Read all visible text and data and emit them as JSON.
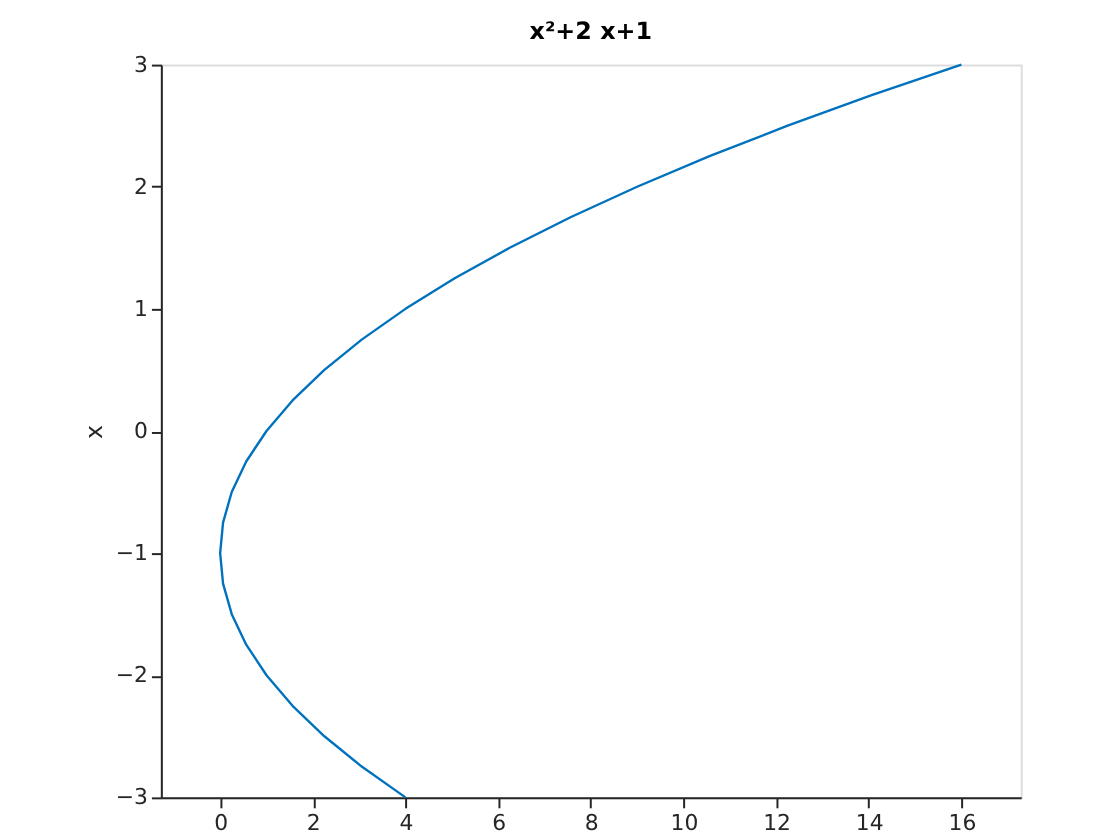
{
  "chart_data": {
    "type": "line",
    "title": "x²+2 x+1",
    "ylabel": "x",
    "series": [
      {
        "color": "#0072bd",
        "x": [
          4,
          3.0625,
          2.25,
          1.5625,
          1,
          0.5625,
          0.25,
          0.0625,
          0,
          0.0625,
          0.25,
          0.5625,
          1,
          1.5625,
          2.25,
          3.0625,
          4,
          5.0625,
          6.25,
          7.5625,
          9,
          10.5625,
          12.25,
          14.0625,
          16
        ],
        "values": [
          -3,
          -2.75,
          -2.5,
          -2.25,
          -2,
          -1.75,
          -1.5,
          -1.25,
          -1,
          -0.75,
          -0.5,
          -0.25,
          0,
          0.25,
          0.5,
          0.75,
          1,
          1.25,
          1.5,
          1.75,
          2,
          2.25,
          2.5,
          2.75,
          3
        ]
      }
    ],
    "xlim": [
      -1.28,
      17.28
    ],
    "xticks": [
      0,
      2,
      4,
      6,
      8,
      10,
      12,
      14,
      16
    ],
    "ylim": [
      -3,
      3
    ],
    "yticks": [
      -3,
      -2,
      -1,
      0,
      1,
      2,
      3
    ],
    "grid": false,
    "marker": "none",
    "line_style": "solid"
  }
}
